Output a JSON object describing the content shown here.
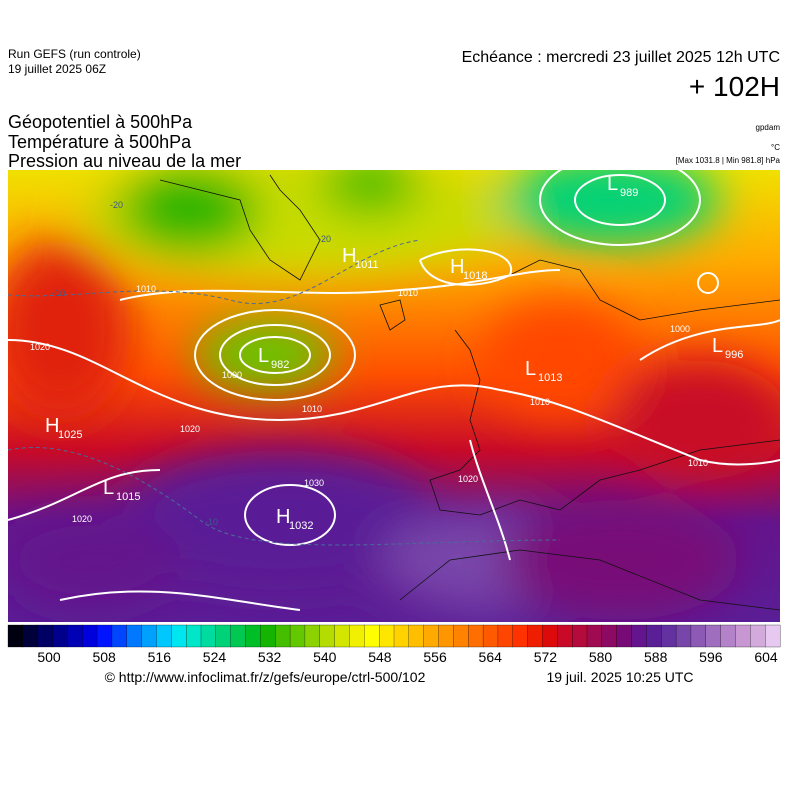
{
  "header": {
    "run": "Run GEFS (run controle)",
    "run_date": "19 juillet 2025 06Z",
    "valid": "Echéance : mercredi 23 juillet 2025 12h UTC",
    "lead": "+ 102H"
  },
  "titles": [
    "Géopotentiel à 500hPa",
    "Température à 500hPa",
    "Pression au niveau de la mer"
  ],
  "units": [
    "gpdam",
    "°C",
    "[Max 1031.8 | Min 981.8] hPa"
  ],
  "pressure_centers": [
    {
      "letter": "L",
      "value": "989"
    },
    {
      "letter": "H",
      "value": "1011"
    },
    {
      "letter": "H",
      "value": "1018"
    },
    {
      "letter": "L",
      "value": "982"
    },
    {
      "letter": "L",
      "value": "1013"
    },
    {
      "letter": "L",
      "value": "996"
    },
    {
      "letter": "H",
      "value": "1025"
    },
    {
      "letter": "L",
      "value": "1015"
    },
    {
      "letter": "H",
      "value": "1032"
    }
  ],
  "isobar_labels": [
    "1010",
    "1010",
    "1020",
    "1020",
    "1000",
    "1010",
    "1030",
    "1020",
    "1000",
    "1010",
    "1010",
    "1020",
    "-20",
    "-20",
    "-10",
    "-10"
  ],
  "colorbar": {
    "ticks": [
      500,
      508,
      516,
      524,
      532,
      540,
      548,
      556,
      564,
      572,
      580,
      588,
      596,
      604
    ],
    "colors": [
      "#000010",
      "#00003a",
      "#000064",
      "#00008c",
      "#0000b4",
      "#0000dc",
      "#0014ff",
      "#0046ff",
      "#0078ff",
      "#00a0ff",
      "#00c8ff",
      "#00e6f0",
      "#00e6c8",
      "#00dca0",
      "#00d278",
      "#00c850",
      "#00be28",
      "#14b400",
      "#46be00",
      "#64c800",
      "#8cd200",
      "#b4dc00",
      "#d2e600",
      "#f0f000",
      "#ffff00",
      "#ffe600",
      "#ffd200",
      "#ffbe00",
      "#ffaa00",
      "#ff9600",
      "#ff8200",
      "#ff6e00",
      "#ff5a00",
      "#ff4600",
      "#ff3200",
      "#f01e00",
      "#dc0a0a",
      "#c80a28",
      "#b40a3c",
      "#a00a50",
      "#8c0a64",
      "#780a78",
      "#64148c",
      "#5a1e96",
      "#6432a0",
      "#7846aa",
      "#8c5ab4",
      "#a06ebe",
      "#b482c8",
      "#c896d2",
      "#d2aadc",
      "#e6c8f0"
    ]
  },
  "footer": {
    "source": "© http://www.infoclimat.fr/z/gefs/europe/ctrl-500/102",
    "issued": "19 juil. 2025 10:25 UTC"
  }
}
